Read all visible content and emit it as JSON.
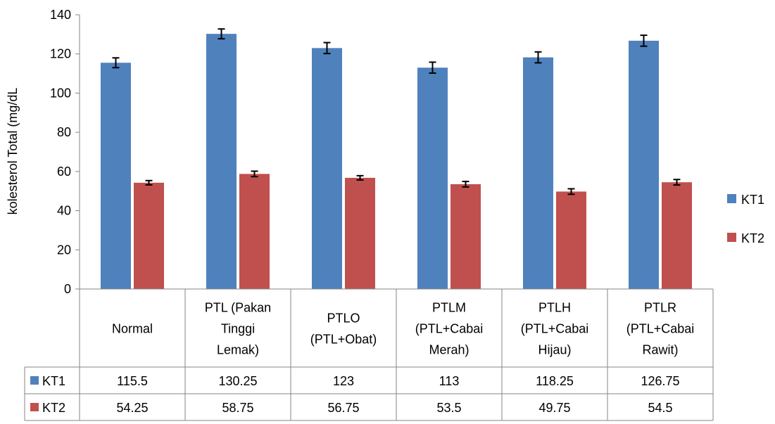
{
  "chart_data": {
    "type": "bar",
    "ylabel": "kolesterol Total (mg/dL",
    "ylim": [
      0,
      140
    ],
    "yticks": [
      0,
      20,
      40,
      60,
      80,
      100,
      120,
      140
    ],
    "categories": [
      [
        "Normal"
      ],
      [
        "PTL (Pakan",
        "Tinggi",
        "Lemak)"
      ],
      [
        "PTLO",
        "(PTL+Obat)"
      ],
      [
        "PTLM",
        "(PTL+Cabai",
        "Merah)"
      ],
      [
        "PTLH",
        "(PTL+Cabai",
        "Hijau)"
      ],
      [
        "PTLR",
        "(PTL+Cabai",
        "Rawit)"
      ]
    ],
    "series": [
      {
        "name": "KT1",
        "color": "#4F81BD",
        "values": [
          115.5,
          130.25,
          123,
          113,
          118.25,
          126.75
        ],
        "labels": [
          "115.5",
          "130.25",
          "123",
          "113",
          "118.25",
          "126.75"
        ],
        "error": [
          2.5,
          2.5,
          2.8,
          2.8,
          2.8,
          2.8
        ]
      },
      {
        "name": "KT2",
        "color": "#C0504D",
        "values": [
          54.25,
          58.75,
          56.75,
          53.5,
          49.75,
          54.5
        ],
        "labels": [
          "54.25",
          "58.75",
          "56.75",
          "53.5",
          "49.75",
          "54.5"
        ],
        "error": [
          1.1,
          1.4,
          1.1,
          1.4,
          1.4,
          1.4
        ]
      }
    ],
    "legend": "right",
    "data_table": true,
    "grid": false
  }
}
